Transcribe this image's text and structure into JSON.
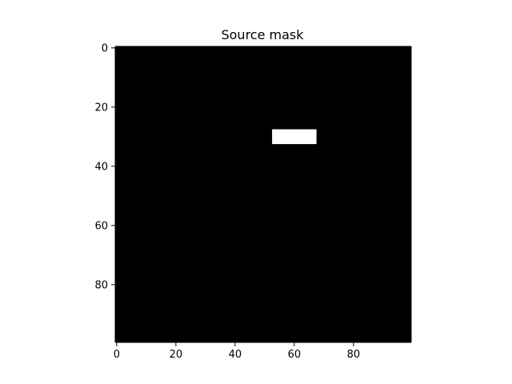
{
  "chart_data": {
    "type": "heatmap",
    "title": "Source mask",
    "xlabel": "",
    "ylabel": "",
    "image_shape": [
      100,
      100
    ],
    "background_value": 0,
    "colors": {
      "background": "#000000",
      "mask": "#ffffff"
    },
    "mask_regions": [
      {
        "x_range": [
          53,
          67
        ],
        "y_range": [
          28,
          32
        ],
        "value": 1
      }
    ],
    "x_ticks": [
      0,
      20,
      40,
      60,
      80
    ],
    "y_ticks": [
      0,
      20,
      40,
      60,
      80
    ],
    "x_tick_labels": [
      "0",
      "20",
      "40",
      "60",
      "80"
    ],
    "y_tick_labels": [
      "0",
      "20",
      "40",
      "60",
      "80"
    ],
    "y_axis_inverted": true,
    "grid": false
  }
}
